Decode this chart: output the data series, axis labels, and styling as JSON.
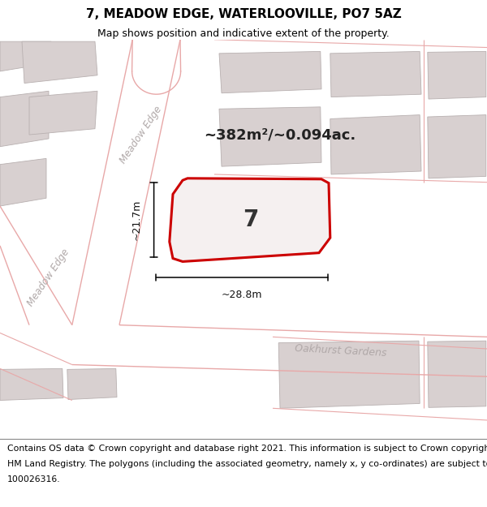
{
  "title": "7, MEADOW EDGE, WATERLOOVILLE, PO7 5AZ",
  "subtitle": "Map shows position and indicative extent of the property.",
  "footer_lines": [
    "Contains OS data © Crown copyright and database right 2021. This information is subject to Crown copyright and database rights 2023 and is reproduced with the permission of",
    "HM Land Registry. The polygons (including the associated geometry, namely x, y co-ordinates) are subject to Crown copyright and database rights 2023 Ordnance Survey",
    "100026316."
  ],
  "area_label": "~382m²/~0.094ac.",
  "width_label": "~28.8m",
  "height_label": "~21.7m",
  "number_label": "7",
  "road_label_upper": "Meadow Edge",
  "road_label_lower": "Meadow Edge",
  "road_label_oakhurst": "Oakhurst Gardens",
  "bg_color": "#ede7e7",
  "bldg_fill": "#d8d0d0",
  "bldg_edge": "#b8b0b0",
  "road_line_color": "#e8a8a8",
  "prop_fill": "#f5f0f0",
  "prop_edge": "#cc0000",
  "title_fontsize": 11,
  "subtitle_fontsize": 9,
  "footer_fontsize": 7.8,
  "area_fontsize": 13,
  "number_fontsize": 20,
  "road_fontsize": 8.5,
  "dim_fontsize": 9
}
